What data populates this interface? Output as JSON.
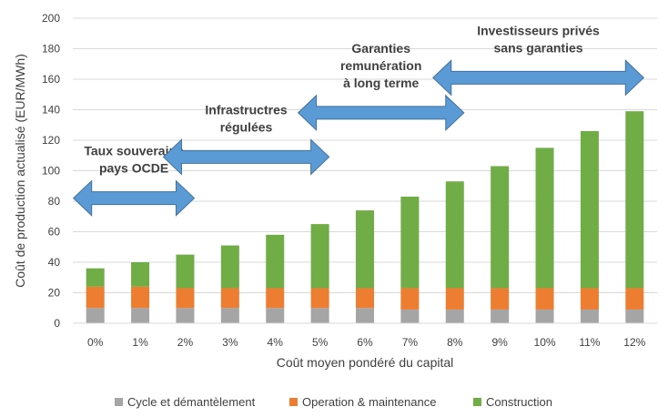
{
  "chart_data": {
    "type": "bar",
    "stacked": true,
    "xlabel": "Coût moyen pondéré du capital",
    "ylabel": "Coût de production actualisé (EUR/MWh)",
    "ylim": [
      0,
      200
    ],
    "yticks": [
      0,
      20,
      40,
      60,
      80,
      100,
      120,
      140,
      160,
      180,
      200
    ],
    "grid": true,
    "legend_position": "bottom",
    "categories": [
      "0%",
      "1%",
      "2%",
      "3%",
      "4%",
      "5%",
      "6%",
      "7%",
      "8%",
      "9%",
      "10%",
      "11%",
      "12%"
    ],
    "series": [
      {
        "name": "Cycle et démantèlement",
        "color": "#a5a5a5",
        "values": [
          10,
          10,
          10,
          10,
          10,
          10,
          10,
          9,
          9,
          9,
          9,
          9,
          9
        ]
      },
      {
        "name": "Operation & maintenance",
        "color": "#ed7d31",
        "values": [
          14,
          14,
          13,
          13,
          13,
          13,
          13,
          14,
          14,
          14,
          14,
          14,
          14
        ]
      },
      {
        "name": "Construction",
        "color": "#70ad47",
        "values": [
          12,
          16,
          22,
          28,
          35,
          42,
          51,
          60,
          70,
          80,
          92,
          103,
          116
        ]
      }
    ],
    "annotations": [
      {
        "lines": [
          "Taux souverains",
          "pays OCDE"
        ],
        "range": [
          "0%",
          "2%"
        ],
        "arrow_y": 82
      },
      {
        "lines": [
          "Infrastructres",
          "régulées"
        ],
        "range": [
          "2%",
          "5%"
        ],
        "arrow_y": 109
      },
      {
        "lines": [
          "Garanties",
          "remunération",
          "à long terme"
        ],
        "range": [
          "5%",
          "8%"
        ],
        "arrow_y": 138
      },
      {
        "lines": [
          "Investisseurs privés",
          "sans garanties"
        ],
        "range": [
          "8%",
          "12%"
        ],
        "arrow_y": 161
      }
    ],
    "arrow_color": "#5b9bd5"
  }
}
